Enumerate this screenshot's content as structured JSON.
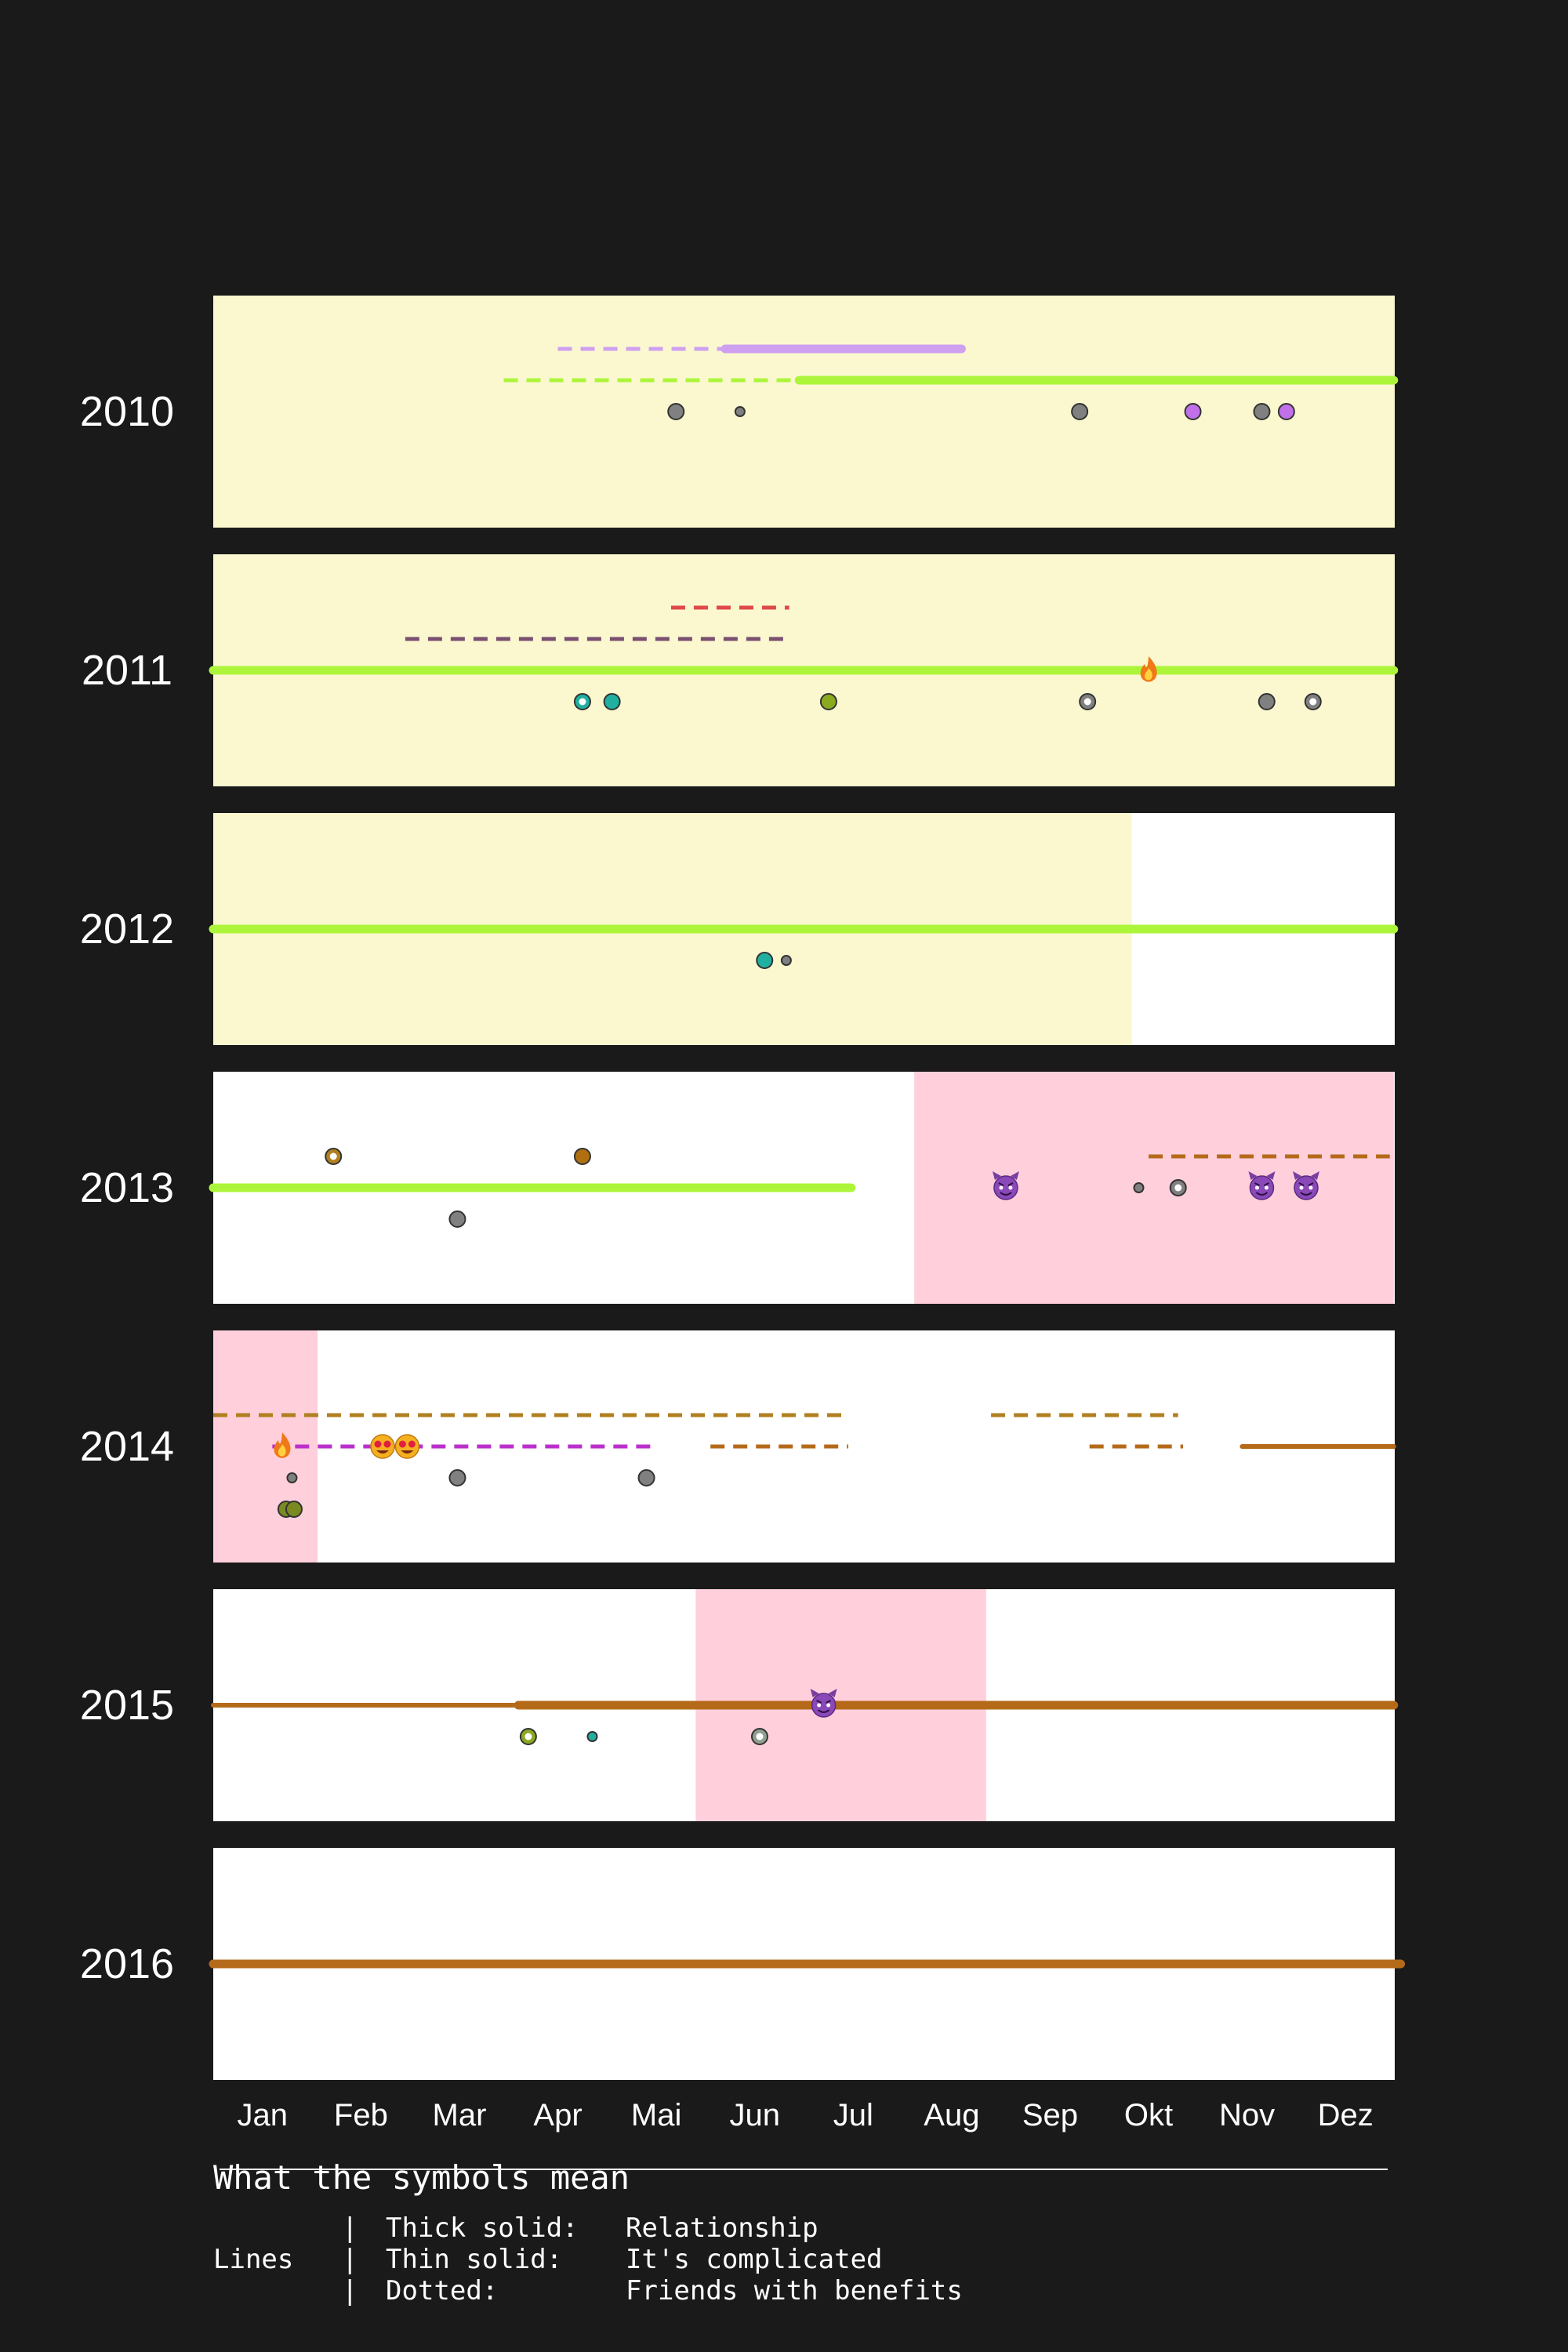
{
  "chart_data": {
    "type": "timeline",
    "months": [
      "Jan",
      "Feb",
      "Mar",
      "Apr",
      "Mai",
      "Jun",
      "Jul",
      "Aug",
      "Sep",
      "Okt",
      "Nov",
      "Dez"
    ],
    "years": [
      "2010",
      "2011",
      "2012",
      "2013",
      "2014",
      "2015",
      "2016"
    ],
    "colors": {
      "background": "#1a1a1a",
      "period_yellow": "#fbf8d0",
      "period_pink": "#ffcfdc",
      "lime": "#adf53a",
      "lilac": "#cfa0f0",
      "red": "#e04a4a",
      "plum": "#7a5070",
      "brown": "#b56a1a",
      "ochre": "#b08020",
      "magenta": "#bb30cc"
    },
    "rows": [
      {
        "year": "2010",
        "background": "#fbf8d0",
        "periods": [],
        "lines": [
          {
            "style": "dotted",
            "color": "#cfa0f0",
            "start": 3.5,
            "end": 5.2,
            "slot": -2
          },
          {
            "style": "thick",
            "color": "#cfa0f0",
            "start": 5.2,
            "end": 7.6,
            "slot": -2
          },
          {
            "style": "dotted",
            "color": "#adf53a",
            "start": 2.95,
            "end": 5.95,
            "slot": -1
          },
          {
            "style": "thick",
            "color": "#adf53a",
            "start": 5.95,
            "end": 11.99,
            "slot": -1
          }
        ],
        "markers": [
          {
            "kind": "dot",
            "color": "#808080",
            "t": 4.7,
            "slot": 0,
            "size": "medium"
          },
          {
            "kind": "dot",
            "color": "#808080",
            "t": 5.35,
            "slot": 0,
            "size": "small"
          },
          {
            "kind": "dot",
            "color": "#808080",
            "t": 8.8,
            "slot": 0,
            "size": "medium"
          },
          {
            "kind": "dot",
            "color": "#c070e8",
            "t": 9.95,
            "slot": 0,
            "size": "medium"
          },
          {
            "kind": "dot",
            "color": "#808080",
            "t": 10.65,
            "slot": 0,
            "size": "medium"
          },
          {
            "kind": "dot",
            "color": "#c070e8",
            "t": 10.9,
            "slot": 0,
            "size": "medium"
          }
        ]
      },
      {
        "year": "2011",
        "background": "#fbf8d0",
        "periods": [],
        "lines": [
          {
            "style": "dotted",
            "color": "#e04a4a",
            "start": 4.65,
            "end": 5.85,
            "slot": -2
          },
          {
            "style": "dotted",
            "color": "#7a5070",
            "start": 1.95,
            "end": 5.8,
            "slot": -1
          },
          {
            "style": "thick",
            "color": "#adf53a",
            "start": 0,
            "end": 11.99,
            "slot": 0
          }
        ],
        "markers": [
          {
            "kind": "fire",
            "t": 9.5,
            "slot": 0
          },
          {
            "kind": "ring",
            "color": "#20b0a0",
            "t": 3.75,
            "slot": 1
          },
          {
            "kind": "dot",
            "color": "#20b0a0",
            "t": 4.05,
            "slot": 1,
            "size": "medium"
          },
          {
            "kind": "dot",
            "color": "#8aaa20",
            "t": 6.25,
            "slot": 1,
            "size": "medium"
          },
          {
            "kind": "ring",
            "color": "#808080",
            "t": 8.88,
            "slot": 1
          },
          {
            "kind": "dot",
            "color": "#808080",
            "t": 10.7,
            "slot": 1,
            "size": "medium"
          },
          {
            "kind": "ring",
            "color": "#808080",
            "t": 11.17,
            "slot": 1
          }
        ]
      },
      {
        "year": "2012",
        "background": "#ffffff",
        "periods": [
          {
            "color": "#fbf8d0",
            "start": 0,
            "end": 9.33
          }
        ],
        "lines": [
          {
            "style": "thick",
            "color": "#adf53a",
            "start": 0,
            "end": 11.99,
            "slot": 0
          }
        ],
        "markers": [
          {
            "kind": "dot",
            "color": "#20b0a0",
            "t": 5.6,
            "slot": 1,
            "size": "medium"
          },
          {
            "kind": "dot",
            "color": "#808080",
            "t": 5.82,
            "slot": 1,
            "size": "small"
          }
        ]
      },
      {
        "year": "2013",
        "background": "#ffffff",
        "periods": [
          {
            "color": "#ffcfdc",
            "start": 7.12,
            "end": 11.99
          }
        ],
        "lines": [
          {
            "style": "dotted",
            "color": "#b56a1a",
            "start": 9.5,
            "end": 11.95,
            "slot": -1
          },
          {
            "style": "thick",
            "color": "#adf53a",
            "start": 0,
            "end": 6.48,
            "slot": 0
          }
        ],
        "markers": [
          {
            "kind": "ring",
            "color": "#b08020",
            "t": 1.22,
            "slot": -1
          },
          {
            "kind": "dot",
            "color": "#b07010",
            "t": 3.75,
            "slot": -1,
            "size": "medium"
          },
          {
            "kind": "devil",
            "t": 8.05,
            "slot": 0
          },
          {
            "kind": "dot",
            "color": "#808080",
            "t": 9.4,
            "slot": 0,
            "size": "small"
          },
          {
            "kind": "ring",
            "color": "#808080",
            "t": 9.8,
            "slot": 0
          },
          {
            "kind": "devil",
            "t": 10.65,
            "slot": 0
          },
          {
            "kind": "devil",
            "t": 11.1,
            "slot": 0
          },
          {
            "kind": "dot",
            "color": "#808080",
            "t": 2.48,
            "slot": 1,
            "size": "medium"
          }
        ]
      },
      {
        "year": "2014",
        "background": "#ffffff",
        "periods": [
          {
            "color": "#ffcfdc",
            "start": 0,
            "end": 1.06
          }
        ],
        "lines": [
          {
            "style": "dotted",
            "color": "#b08020",
            "start": 0,
            "end": 6.45,
            "slot": -1
          },
          {
            "style": "dotted",
            "color": "#b08020",
            "start": 7.9,
            "end": 9.8,
            "slot": -1
          },
          {
            "style": "dotted",
            "color": "#bb30cc",
            "start": 0.6,
            "end": 4.45,
            "slot": 0
          },
          {
            "style": "dotted",
            "color": "#b56a1a",
            "start": 5.05,
            "end": 6.45,
            "slot": 0
          },
          {
            "style": "dotted",
            "color": "#b56a1a",
            "start": 8.9,
            "end": 9.85,
            "slot": 0
          },
          {
            "style": "thin",
            "color": "#b56a1a",
            "start": 10.45,
            "end": 11.99,
            "slot": 0
          }
        ],
        "markers": [
          {
            "kind": "fire",
            "t": 0.7,
            "slot": 0
          },
          {
            "kind": "love",
            "t": 1.72,
            "slot": 0
          },
          {
            "kind": "love",
            "t": 1.97,
            "slot": 0
          },
          {
            "kind": "dot",
            "color": "#808080",
            "t": 0.8,
            "slot": 1,
            "size": "small"
          },
          {
            "kind": "dot",
            "color": "#808080",
            "t": 2.48,
            "slot": 1,
            "size": "medium"
          },
          {
            "kind": "dot",
            "color": "#808080",
            "t": 4.4,
            "slot": 1,
            "size": "medium"
          },
          {
            "kind": "dot",
            "color": "#7a8a20",
            "t": 0.74,
            "slot": 2,
            "size": "medium"
          },
          {
            "kind": "dot",
            "color": "#7a8a20",
            "t": 0.82,
            "slot": 2,
            "size": "medium"
          }
        ]
      },
      {
        "year": "2015",
        "background": "#ffffff",
        "periods": [
          {
            "color": "#ffcfdc",
            "start": 4.9,
            "end": 7.85
          }
        ],
        "lines": [
          {
            "style": "thin",
            "color": "#b56a1a",
            "start": 0,
            "end": 3.1,
            "slot": 0
          },
          {
            "style": "thick",
            "color": "#b56a1a",
            "start": 3.1,
            "end": 11.99,
            "slot": 0
          }
        ],
        "markers": [
          {
            "kind": "devil",
            "t": 6.2,
            "slot": 0
          },
          {
            "kind": "ring",
            "color": "#8aaa20",
            "t": 3.2,
            "slot": 1
          },
          {
            "kind": "dot",
            "color": "#20b0a0",
            "t": 3.85,
            "slot": 1,
            "size": "small"
          },
          {
            "kind": "ring",
            "color": "#90a090",
            "t": 5.55,
            "slot": 1
          }
        ]
      },
      {
        "year": "2016",
        "background": "#ffffff",
        "periods": [],
        "lines": [
          {
            "style": "thick",
            "color": "#b56a1a",
            "start": 0,
            "end": 12.06,
            "slot": 0
          }
        ],
        "markers": []
      }
    ]
  },
  "legend": {
    "title": "What the symbols mean",
    "category": "Lines",
    "separator": "|",
    "entries": [
      {
        "name": "Thick solid:",
        "meaning": "Relationship"
      },
      {
        "name": "Thin solid:",
        "meaning": "It's complicated"
      },
      {
        "name": "Dotted:",
        "meaning": "Friends with benefits"
      }
    ]
  }
}
